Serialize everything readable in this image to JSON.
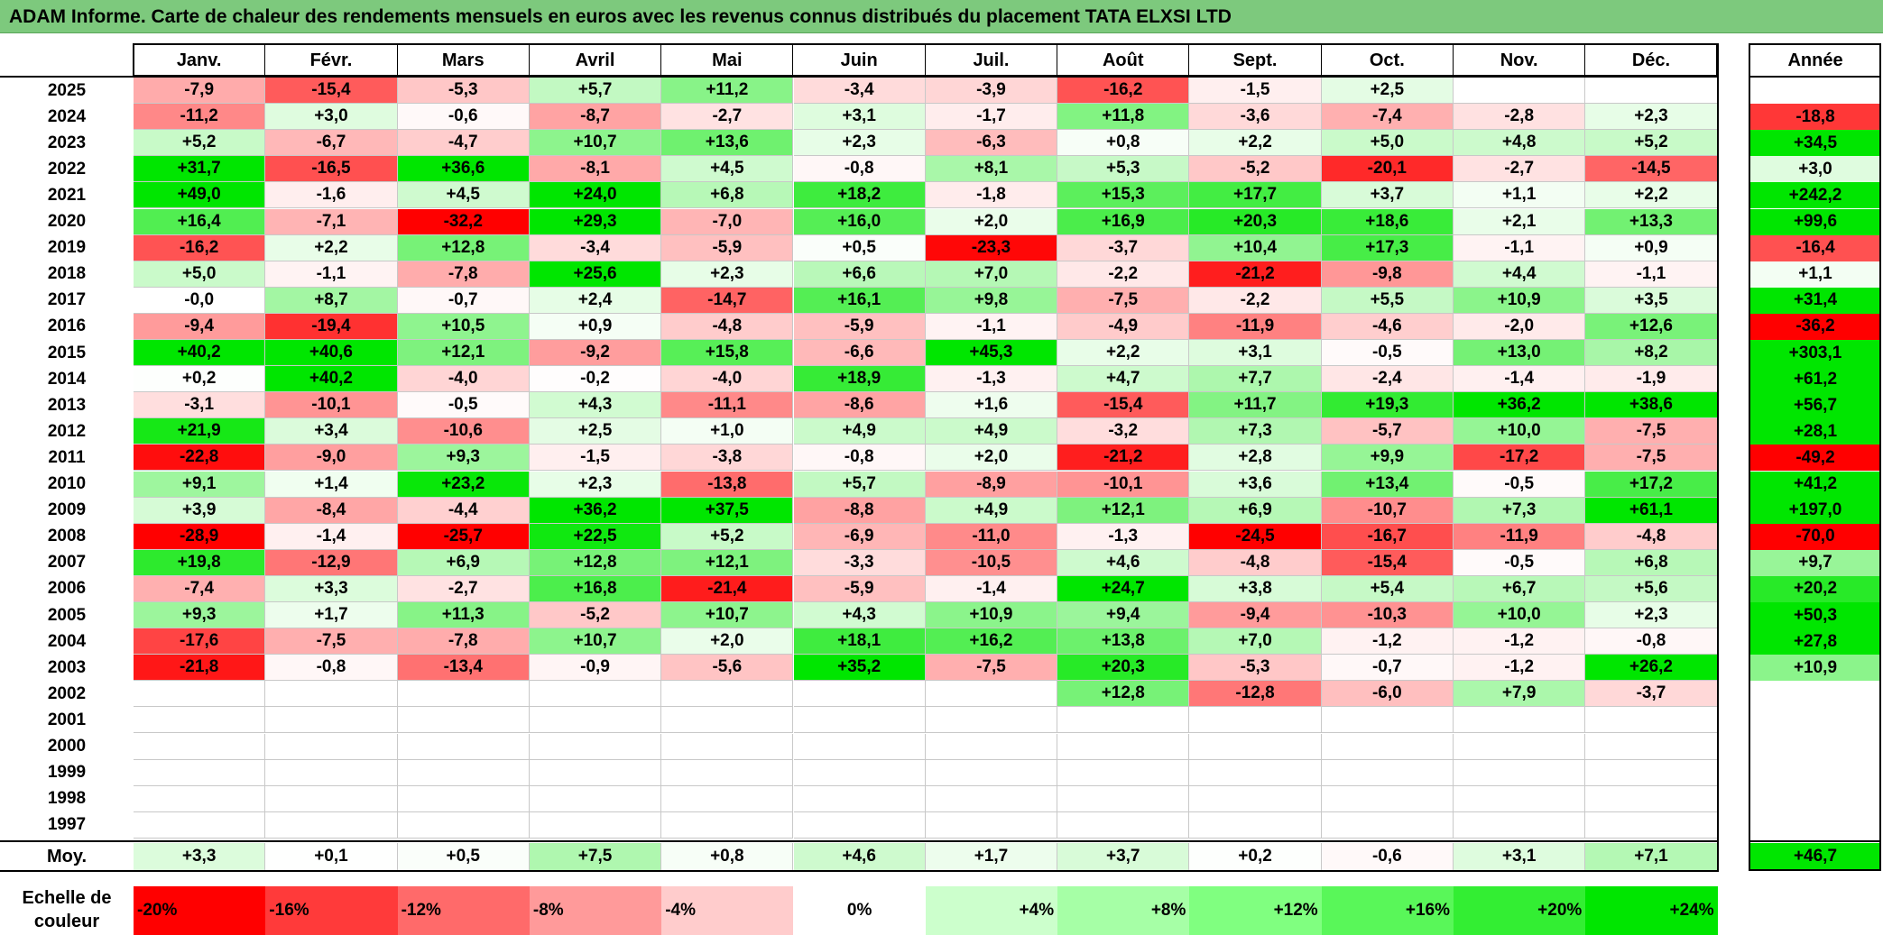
{
  "title": "ADAM Informe. Carte de chaleur des rendements mensuels en euros avec les revenus connus distribués du placement TATA ELXSI LTD",
  "chart_data": {
    "type": "heatmap",
    "title": "ADAM Informe. Carte de chaleur des rendements mensuels en euros avec les revenus connus distribués du placement TATA ELXSI LTD",
    "months": [
      "Janv.",
      "Févr.",
      "Mars",
      "Avril",
      "Mai",
      "Juin",
      "Juil.",
      "Août",
      "Sept.",
      "Oct.",
      "Nov.",
      "Déc."
    ],
    "annual_label": "Année",
    "avg_label": "Moy.",
    "rows": [
      {
        "year": "2025",
        "values": [
          "-7,9",
          "-15,4",
          "-5,3",
          "+5,7",
          "+11,2",
          "-3,4",
          "-3,9",
          "-16,2",
          "-1,5",
          "+2,5",
          "",
          ""
        ],
        "annual": ""
      },
      {
        "year": "2024",
        "values": [
          "-11,2",
          "+3,0",
          "-0,6",
          "-8,7",
          "-2,7",
          "+3,1",
          "-1,7",
          "+11,8",
          "-3,6",
          "-7,4",
          "-2,8",
          "+2,3"
        ],
        "annual": "-18,8"
      },
      {
        "year": "2023",
        "values": [
          "+5,2",
          "-6,7",
          "-4,7",
          "+10,7",
          "+13,6",
          "+2,3",
          "-6,3",
          "+0,8",
          "+2,2",
          "+5,0",
          "+4,8",
          "+5,2"
        ],
        "annual": "+34,5"
      },
      {
        "year": "2022",
        "values": [
          "+31,7",
          "-16,5",
          "+36,6",
          "-8,1",
          "+4,5",
          "-0,8",
          "+8,1",
          "+5,3",
          "-5,2",
          "-20,1",
          "-2,7",
          "-14,5"
        ],
        "annual": "+3,0"
      },
      {
        "year": "2021",
        "values": [
          "+49,0",
          "-1,6",
          "+4,5",
          "+24,0",
          "+6,8",
          "+18,2",
          "-1,8",
          "+15,3",
          "+17,7",
          "+3,7",
          "+1,1",
          "+2,2"
        ],
        "annual": "+242,2"
      },
      {
        "year": "2020",
        "values": [
          "+16,4",
          "-7,1",
          "-32,2",
          "+29,3",
          "-7,0",
          "+16,0",
          "+2,0",
          "+16,9",
          "+20,3",
          "+18,6",
          "+2,1",
          "+13,3"
        ],
        "annual": "+99,6"
      },
      {
        "year": "2019",
        "values": [
          "-16,2",
          "+2,2",
          "+12,8",
          "-3,4",
          "-5,9",
          "+0,5",
          "-23,3",
          "-3,7",
          "+10,4",
          "+17,3",
          "-1,1",
          "+0,9"
        ],
        "annual": "-16,4"
      },
      {
        "year": "2018",
        "values": [
          "+5,0",
          "-1,1",
          "-7,8",
          "+25,6",
          "+2,3",
          "+6,6",
          "+7,0",
          "-2,2",
          "-21,2",
          "-9,8",
          "+4,4",
          "-1,1"
        ],
        "annual": "+1,1"
      },
      {
        "year": "2017",
        "values": [
          "-0,0",
          "+8,7",
          "-0,7",
          "+2,4",
          "-14,7",
          "+16,1",
          "+9,8",
          "-7,5",
          "-2,2",
          "+5,5",
          "+10,9",
          "+3,5"
        ],
        "annual": "+31,4"
      },
      {
        "year": "2016",
        "values": [
          "-9,4",
          "-19,4",
          "+10,5",
          "+0,9",
          "-4,8",
          "-5,9",
          "-1,1",
          "-4,9",
          "-11,9",
          "-4,6",
          "-2,0",
          "+12,6"
        ],
        "annual": "-36,2"
      },
      {
        "year": "2015",
        "values": [
          "+40,2",
          "+40,6",
          "+12,1",
          "-9,2",
          "+15,8",
          "-6,6",
          "+45,3",
          "+2,2",
          "+3,1",
          "-0,5",
          "+13,0",
          "+8,2"
        ],
        "annual": "+303,1"
      },
      {
        "year": "2014",
        "values": [
          "+0,2",
          "+40,2",
          "-4,0",
          "-0,2",
          "-4,0",
          "+18,9",
          "-1,3",
          "+4,7",
          "+7,7",
          "-2,4",
          "-1,4",
          "-1,9"
        ],
        "annual": "+61,2"
      },
      {
        "year": "2013",
        "values": [
          "-3,1",
          "-10,1",
          "-0,5",
          "+4,3",
          "-11,1",
          "-8,6",
          "+1,6",
          "-15,4",
          "+11,7",
          "+19,3",
          "+36,2",
          "+38,6"
        ],
        "annual": "+56,7"
      },
      {
        "year": "2012",
        "values": [
          "+21,9",
          "+3,4",
          "-10,6",
          "+2,5",
          "+1,0",
          "+4,9",
          "+4,9",
          "-3,2",
          "+7,3",
          "-5,7",
          "+10,0",
          "-7,5"
        ],
        "annual": "+28,1"
      },
      {
        "year": "2011",
        "values": [
          "-22,8",
          "-9,0",
          "+9,3",
          "-1,5",
          "-3,8",
          "-0,8",
          "+2,0",
          "-21,2",
          "+2,8",
          "+9,9",
          "-17,2",
          "-7,5"
        ],
        "annual": "-49,2"
      },
      {
        "year": "2010",
        "values": [
          "+9,1",
          "+1,4",
          "+23,2",
          "+2,3",
          "-13,8",
          "+5,7",
          "-8,9",
          "-10,1",
          "+3,6",
          "+13,4",
          "-0,5",
          "+17,2"
        ],
        "annual": "+41,2"
      },
      {
        "year": "2009",
        "values": [
          "+3,9",
          "-8,4",
          "-4,4",
          "+36,2",
          "+37,5",
          "-8,8",
          "+4,9",
          "+12,1",
          "+6,9",
          "-10,7",
          "+7,3",
          "+61,1"
        ],
        "annual": "+197,0"
      },
      {
        "year": "2008",
        "values": [
          "-28,9",
          "-1,4",
          "-25,7",
          "+22,5",
          "+5,2",
          "-6,9",
          "-11,0",
          "-1,3",
          "-24,5",
          "-16,7",
          "-11,9",
          "-4,8"
        ],
        "annual": "-70,0"
      },
      {
        "year": "2007",
        "values": [
          "+19,8",
          "-12,9",
          "+6,9",
          "+12,8",
          "+12,1",
          "-3,3",
          "-10,5",
          "+4,6",
          "-4,8",
          "-15,4",
          "-0,5",
          "+6,8"
        ],
        "annual": "+9,7"
      },
      {
        "year": "2006",
        "values": [
          "-7,4",
          "+3,3",
          "-2,7",
          "+16,8",
          "-21,4",
          "-5,9",
          "-1,4",
          "+24,7",
          "+3,8",
          "+5,4",
          "+6,7",
          "+5,6"
        ],
        "annual": "+20,2"
      },
      {
        "year": "2005",
        "values": [
          "+9,3",
          "+1,7",
          "+11,3",
          "-5,2",
          "+10,7",
          "+4,3",
          "+10,9",
          "+9,4",
          "-9,4",
          "-10,3",
          "+10,0",
          "+2,3"
        ],
        "annual": "+50,3"
      },
      {
        "year": "2004",
        "values": [
          "-17,6",
          "-7,5",
          "-7,8",
          "+10,7",
          "+2,0",
          "+18,1",
          "+16,2",
          "+13,8",
          "+7,0",
          "-1,2",
          "-1,2",
          "-0,8"
        ],
        "annual": "+27,8"
      },
      {
        "year": "2003",
        "values": [
          "-21,8",
          "-0,8",
          "-13,4",
          "-0,9",
          "-5,6",
          "+35,2",
          "-7,5",
          "+20,3",
          "-5,3",
          "-0,7",
          "-1,2",
          "+26,2"
        ],
        "annual": "+10,9"
      },
      {
        "year": "2002",
        "values": [
          "",
          "",
          "",
          "",
          "",
          "",
          "",
          "+12,8",
          "-12,8",
          "-6,0",
          "+7,9",
          "-3,7"
        ],
        "annual": ""
      },
      {
        "year": "2001",
        "values": [
          "",
          "",
          "",
          "",
          "",
          "",
          "",
          "",
          "",
          "",
          "",
          ""
        ],
        "annual": ""
      },
      {
        "year": "2000",
        "values": [
          "",
          "",
          "",
          "",
          "",
          "",
          "",
          "",
          "",
          "",
          "",
          ""
        ],
        "annual": ""
      },
      {
        "year": "1999",
        "values": [
          "",
          "",
          "",
          "",
          "",
          "",
          "",
          "",
          "",
          "",
          "",
          ""
        ],
        "annual": ""
      },
      {
        "year": "1998",
        "values": [
          "",
          "",
          "",
          "",
          "",
          "",
          "",
          "",
          "",
          "",
          "",
          ""
        ],
        "annual": ""
      },
      {
        "year": "1997",
        "values": [
          "",
          "",
          "",
          "",
          "",
          "",
          "",
          "",
          "",
          "",
          "",
          ""
        ],
        "annual": ""
      }
    ],
    "averages": [
      "+3,3",
      "+0,1",
      "+0,5",
      "+7,5",
      "+0,8",
      "+4,6",
      "+1,7",
      "+3,7",
      "+0,2",
      "-0,6",
      "+3,1",
      "+7,1"
    ],
    "annual_average": "+46,7",
    "scale_label": "Echelle de couleur",
    "scale": [
      {
        "label": "-20%",
        "color": "#ff0000"
      },
      {
        "label": "-16%",
        "color": "#ff3a3a"
      },
      {
        "label": "-12%",
        "color": "#ff6a6a"
      },
      {
        "label": "-8%",
        "color": "#ff9a9a"
      },
      {
        "label": "-4%",
        "color": "#ffcccc"
      },
      {
        "label": "0%",
        "color": "#ffffff"
      },
      {
        "label": "+4%",
        "color": "#ccffcc"
      },
      {
        "label": "+8%",
        "color": "#a6ffa6"
      },
      {
        "label": "+12%",
        "color": "#80ff80"
      },
      {
        "label": "+16%",
        "color": "#59f759"
      },
      {
        "label": "+20%",
        "color": "#33ee33"
      },
      {
        "label": "+24%",
        "color": "#00e600"
      }
    ]
  }
}
